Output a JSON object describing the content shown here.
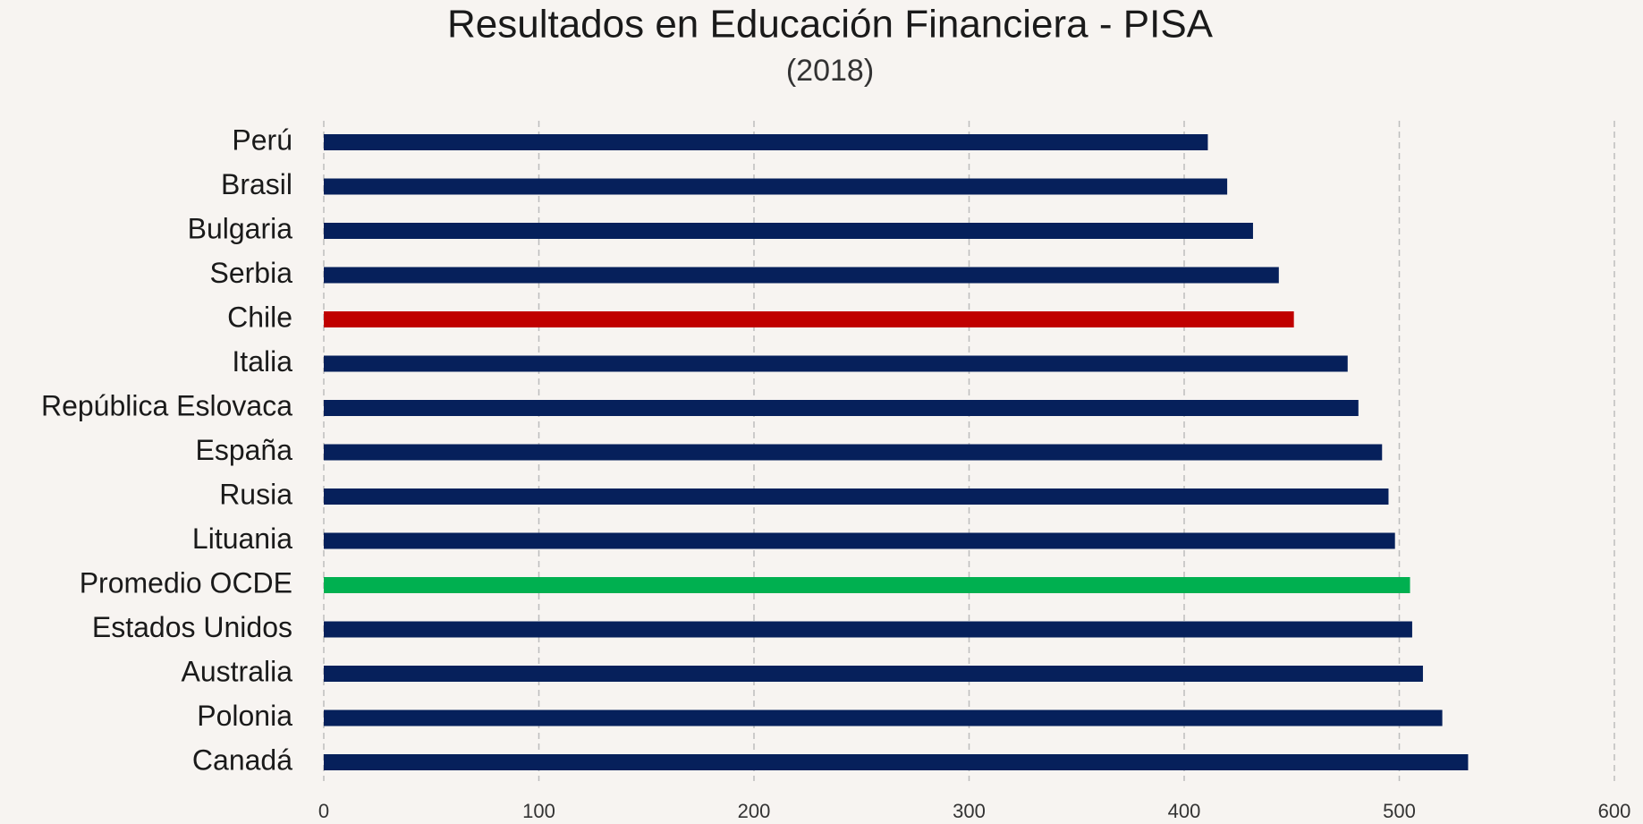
{
  "chart_data": {
    "type": "bar",
    "orientation": "horizontal",
    "title": "Resultados en Educación Financiera - PISA",
    "subtitle": "(2018)",
    "categories": [
      "Perú",
      "Brasil",
      "Bulgaria",
      "Serbia",
      "Chile",
      "Italia",
      "República Eslovaca",
      "España",
      "Rusia",
      "Lituania",
      "Promedio OCDE",
      "Estados Unidos",
      "Australia",
      "Polonia",
      "Canadá"
    ],
    "values": [
      411,
      420,
      432,
      444,
      451,
      476,
      481,
      492,
      495,
      498,
      505,
      506,
      511,
      520,
      532
    ],
    "colors": [
      "#06205b",
      "#06205b",
      "#06205b",
      "#06205b",
      "#c00000",
      "#06205b",
      "#06205b",
      "#06205b",
      "#06205b",
      "#06205b",
      "#00b050",
      "#06205b",
      "#06205b",
      "#06205b",
      "#06205b"
    ],
    "xlim": [
      0,
      600
    ],
    "xticks": [
      0,
      100,
      200,
      300,
      400,
      500,
      600
    ],
    "grid": true
  }
}
